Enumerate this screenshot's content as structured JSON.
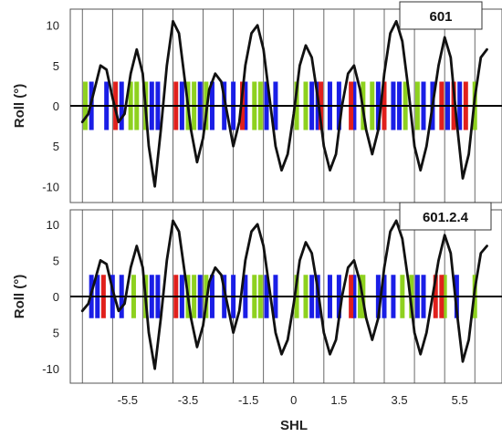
{
  "chart_data": [
    {
      "type": "line",
      "panel_label": "601",
      "ylabel": "Roll (°)",
      "ylim": [
        -12,
        12
      ],
      "yticks": [
        "10",
        "5",
        "0",
        "5",
        "-10"
      ],
      "ytick_values": [
        10,
        5,
        0,
        -5,
        -10
      ],
      "series": [
        {
          "x": [
            -7.0,
            -6.8,
            -6.6,
            -6.4,
            -6.2,
            -6.0,
            -5.8,
            -5.6,
            -5.4,
            -5.2,
            -5.0,
            -4.8,
            -4.6,
            -4.4,
            -4.2,
            -4.0,
            -3.8,
            -3.6,
            -3.4,
            -3.2,
            -3.0,
            -2.8,
            -2.6,
            -2.4,
            -2.2,
            -2.0,
            -1.8,
            -1.6,
            -1.4,
            -1.2,
            -1.0,
            -0.8,
            -0.6,
            -0.4,
            -0.2,
            0.0,
            0.2,
            0.4,
            0.6,
            0.8,
            1.0,
            1.2,
            1.4,
            1.6,
            1.8,
            2.0,
            2.2,
            2.4,
            2.6,
            2.8,
            3.0,
            3.2,
            3.4,
            3.6,
            3.8,
            4.0,
            4.2,
            4.4,
            4.6,
            4.8,
            5.0,
            5.2,
            5.4,
            5.6,
            5.8,
            6.0,
            6.2,
            6.4
          ],
          "y": [
            -2,
            -1,
            2,
            5,
            4.5,
            1,
            -2,
            -1,
            4,
            7,
            4,
            -5,
            -10,
            -3,
            5,
            10.5,
            9,
            3,
            -3,
            -7,
            -4,
            2,
            4,
            3,
            -1,
            -5,
            -2,
            5,
            9,
            10,
            7,
            1,
            -5,
            -8,
            -6,
            -1,
            5,
            7.5,
            6,
            1,
            -5,
            -8,
            -6,
            0,
            4,
            5,
            2,
            -3,
            -6,
            -3,
            4,
            9,
            10.5,
            8,
            2,
            -5,
            -8,
            -5,
            0,
            5,
            8.5,
            6,
            -2,
            -9,
            -6,
            1,
            6,
            7
          ]
        }
      ],
      "bands": {
        "red": [
          -5.9,
          -3.9,
          -1.7,
          0.9,
          1.9,
          3.0,
          4.9,
          5.3,
          5.7
        ],
        "green": [
          -6.9,
          -5.4,
          -5.2,
          -4.9,
          -3.5,
          -3.3,
          -2.9,
          -1.3,
          -1.1,
          0.1,
          0.4,
          2.3,
          2.6,
          3.7,
          4.1,
          6.0
        ],
        "blue": [
          -6.7,
          -6.2,
          -5.7,
          -4.7,
          -4.5,
          -3.7,
          -3.1,
          -2.7,
          -2.3,
          -2.0,
          -1.6,
          -0.9,
          -0.6,
          0.6,
          0.8,
          1.2,
          1.5,
          2.0,
          2.8,
          3.3,
          3.5,
          4.3,
          4.6,
          5.1,
          5.5
        ]
      }
    },
    {
      "type": "line",
      "panel_label": "601.2.4",
      "ylabel": "Roll (°)",
      "xlabel": "SHL",
      "ylim": [
        -12,
        12
      ],
      "yticks": [
        "10",
        "5",
        "0",
        "5",
        "-10"
      ],
      "ytick_values": [
        10,
        5,
        0,
        -5,
        -10
      ],
      "xticks": [
        "-5.5",
        "-3.5",
        "-1.5",
        "0",
        "1.5",
        "3.5",
        "5.5"
      ],
      "xtick_values": [
        -5.5,
        -3.5,
        -1.5,
        0,
        1.5,
        3.5,
        5.5
      ],
      "series": [
        {
          "x": [
            -7.0,
            -6.8,
            -6.6,
            -6.4,
            -6.2,
            -6.0,
            -5.8,
            -5.6,
            -5.4,
            -5.2,
            -5.0,
            -4.8,
            -4.6,
            -4.4,
            -4.2,
            -4.0,
            -3.8,
            -3.6,
            -3.4,
            -3.2,
            -3.0,
            -2.8,
            -2.6,
            -2.4,
            -2.2,
            -2.0,
            -1.8,
            -1.6,
            -1.4,
            -1.2,
            -1.0,
            -0.8,
            -0.6,
            -0.4,
            -0.2,
            0.0,
            0.2,
            0.4,
            0.6,
            0.8,
            1.0,
            1.2,
            1.4,
            1.6,
            1.8,
            2.0,
            2.2,
            2.4,
            2.6,
            2.8,
            3.0,
            3.2,
            3.4,
            3.6,
            3.8,
            4.0,
            4.2,
            4.4,
            4.6,
            4.8,
            5.0,
            5.2,
            5.4,
            5.6,
            5.8,
            6.0,
            6.2,
            6.4
          ],
          "y": [
            -2,
            -1,
            2,
            5,
            4.5,
            1,
            -2,
            -1,
            4,
            7,
            4,
            -5,
            -10,
            -3,
            5,
            10.5,
            9,
            3,
            -3,
            -7,
            -4,
            2,
            4,
            3,
            -1,
            -5,
            -2,
            5,
            9,
            10,
            7,
            1,
            -5,
            -8,
            -6,
            -1,
            5,
            7.5,
            6,
            1,
            -5,
            -8,
            -6,
            0,
            4,
            5,
            2,
            -3,
            -6,
            -3,
            4,
            9,
            10.5,
            8,
            2,
            -5,
            -8,
            -5,
            0,
            5,
            8.5,
            6,
            -2,
            -9,
            -6,
            1,
            6,
            7
          ]
        }
      ],
      "bands": {
        "red": [
          -6.3,
          -3.9,
          1.9,
          4.7,
          4.9
        ],
        "green": [
          -5.3,
          -4.9,
          -3.5,
          -3.3,
          -2.9,
          -1.3,
          -1.1,
          0.1,
          0.4,
          2.2,
          2.3,
          3.6,
          3.9,
          5.0,
          6.0
        ],
        "blue": [
          -6.7,
          -6.5,
          -6.0,
          -5.7,
          -4.7,
          -4.5,
          -3.7,
          -3.1,
          -2.7,
          -2.3,
          -2.0,
          -1.6,
          -0.9,
          -0.6,
          0.6,
          0.8,
          1.2,
          1.5,
          2.0,
          2.8,
          3.0,
          3.3,
          4.1,
          4.3,
          5.4
        ]
      }
    }
  ],
  "colors": {
    "line": "#111111",
    "red": "#e0201c",
    "green": "#8ed11f",
    "blue": "#1a1ee6",
    "grid": "#444444",
    "frame": "#555555"
  }
}
